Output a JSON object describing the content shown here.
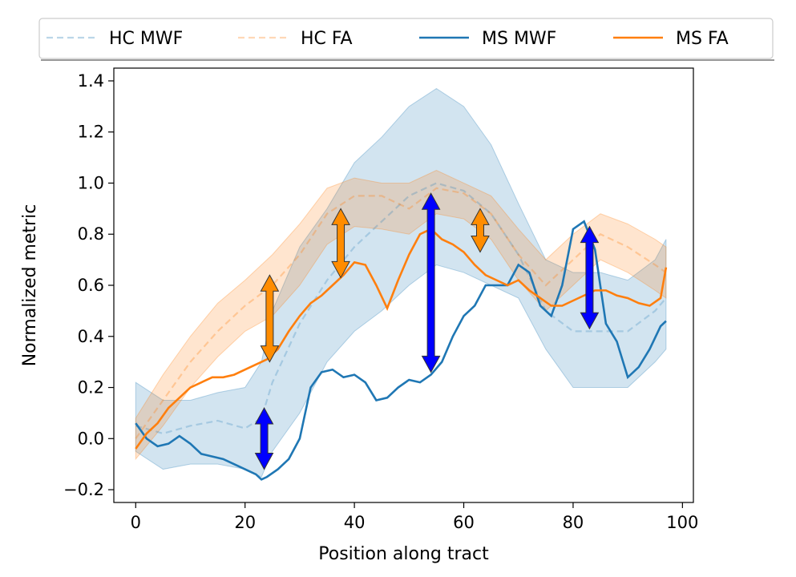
{
  "chart_data": {
    "type": "line",
    "title": "",
    "xlabel": "Position along tract",
    "ylabel": "Normalized metric",
    "xlim": [
      -4,
      102
    ],
    "ylim": [
      -0.25,
      1.45
    ],
    "xticks": [
      0,
      20,
      40,
      60,
      80,
      100
    ],
    "xtick_labels": [
      "0",
      "20",
      "40",
      "60",
      "80",
      "100"
    ],
    "yticks": [
      -0.2,
      0.0,
      0.2,
      0.4,
      0.6,
      0.8,
      1.0,
      1.2,
      1.4
    ],
    "ytick_labels": [
      "−0.2",
      "0.0",
      "0.2",
      "0.4",
      "0.6",
      "0.8",
      "1.0",
      "1.2",
      "1.4"
    ],
    "grid": false,
    "legend_position": "top, outside plot, single row",
    "legend": [
      {
        "label": "HC MWF",
        "color": "#1f77b4",
        "style": "dashed-faint"
      },
      {
        "label": "HC FA",
        "color": "#ff7f0e",
        "style": "dashed-faint"
      },
      {
        "label": "MS MWF",
        "color": "#1f77b4",
        "style": "solid"
      },
      {
        "label": "MS FA",
        "color": "#ff7f0e",
        "style": "solid"
      }
    ],
    "series": [
      {
        "name": "HC MWF",
        "color": "#1f77b4",
        "style": "dashed",
        "opacity": 0.25,
        "x": [
          0,
          5,
          10,
          15,
          20,
          23,
          25,
          30,
          35,
          40,
          45,
          50,
          55,
          60,
          65,
          70,
          75,
          80,
          85,
          90,
          95,
          97
        ],
        "y": [
          0.05,
          0.02,
          0.05,
          0.07,
          0.04,
          0.08,
          0.22,
          0.45,
          0.62,
          0.75,
          0.85,
          0.95,
          1.0,
          0.97,
          0.88,
          0.72,
          0.5,
          0.42,
          0.42,
          0.42,
          0.5,
          0.55
        ]
      },
      {
        "name": "HC MWF band",
        "color": "#1f77b4",
        "style": "band",
        "opacity": 0.2,
        "x": [
          0,
          5,
          10,
          15,
          20,
          23,
          25,
          30,
          35,
          40,
          45,
          50,
          55,
          60,
          65,
          70,
          75,
          80,
          85,
          90,
          95,
          97
        ],
        "lower": [
          -0.05,
          -0.12,
          -0.1,
          -0.1,
          -0.12,
          -0.15,
          -0.05,
          0.1,
          0.3,
          0.42,
          0.5,
          0.6,
          0.68,
          0.65,
          0.6,
          0.55,
          0.35,
          0.2,
          0.2,
          0.2,
          0.3,
          0.35
        ],
        "upper": [
          0.22,
          0.15,
          0.15,
          0.18,
          0.2,
          0.3,
          0.5,
          0.75,
          0.9,
          1.08,
          1.18,
          1.3,
          1.37,
          1.3,
          1.15,
          0.92,
          0.7,
          0.65,
          0.65,
          0.62,
          0.7,
          0.78
        ]
      },
      {
        "name": "HC FA",
        "color": "#ff7f0e",
        "style": "dashed",
        "opacity": 0.3,
        "x": [
          0,
          5,
          10,
          15,
          20,
          25,
          30,
          35,
          40,
          45,
          50,
          55,
          60,
          65,
          70,
          75,
          80,
          85,
          90,
          95,
          97
        ],
        "y": [
          0.0,
          0.15,
          0.3,
          0.42,
          0.52,
          0.6,
          0.72,
          0.88,
          0.95,
          0.95,
          0.9,
          0.98,
          0.96,
          0.88,
          0.72,
          0.6,
          0.7,
          0.8,
          0.75,
          0.68,
          0.65
        ]
      },
      {
        "name": "HC FA band",
        "color": "#ff7f0e",
        "style": "band",
        "opacity": 0.2,
        "x": [
          0,
          5,
          10,
          15,
          20,
          25,
          30,
          35,
          40,
          45,
          50,
          55,
          60,
          65,
          70,
          75,
          80,
          85,
          90,
          95,
          97
        ],
        "lower": [
          -0.08,
          0.05,
          0.2,
          0.32,
          0.42,
          0.48,
          0.6,
          0.76,
          0.83,
          0.82,
          0.8,
          0.88,
          0.86,
          0.78,
          0.62,
          0.5,
          0.6,
          0.7,
          0.65,
          0.58,
          0.55
        ],
        "upper": [
          0.08,
          0.25,
          0.4,
          0.53,
          0.62,
          0.72,
          0.84,
          0.98,
          1.02,
          1.0,
          1.0,
          1.05,
          1.0,
          0.95,
          0.82,
          0.7,
          0.8,
          0.88,
          0.84,
          0.78,
          0.75
        ]
      },
      {
        "name": "MS MWF",
        "color": "#1f77b4",
        "style": "solid",
        "opacity": 1,
        "x": [
          0,
          2,
          4,
          6,
          8,
          10,
          12,
          14,
          16,
          18,
          20,
          22,
          23,
          24,
          26,
          28,
          30,
          32,
          34,
          36,
          38,
          40,
          42,
          44,
          46,
          48,
          50,
          52,
          54,
          56,
          58,
          60,
          62,
          64,
          66,
          68,
          70,
          72,
          74,
          76,
          78,
          80,
          82,
          84,
          86,
          88,
          90,
          92,
          94,
          96,
          97
        ],
        "y": [
          0.06,
          0.0,
          -0.03,
          -0.02,
          0.01,
          -0.02,
          -0.06,
          -0.07,
          -0.08,
          -0.1,
          -0.12,
          -0.14,
          -0.16,
          -0.15,
          -0.12,
          -0.08,
          0.0,
          0.2,
          0.26,
          0.27,
          0.24,
          0.25,
          0.22,
          0.15,
          0.16,
          0.2,
          0.23,
          0.22,
          0.25,
          0.3,
          0.4,
          0.48,
          0.52,
          0.6,
          0.6,
          0.6,
          0.68,
          0.65,
          0.52,
          0.48,
          0.6,
          0.82,
          0.85,
          0.74,
          0.45,
          0.38,
          0.24,
          0.28,
          0.35,
          0.44,
          0.46
        ]
      },
      {
        "name": "MS FA",
        "color": "#ff7f0e",
        "style": "solid",
        "opacity": 1,
        "x": [
          0,
          2,
          4,
          6,
          8,
          10,
          12,
          14,
          16,
          18,
          20,
          22,
          24,
          26,
          28,
          30,
          32,
          34,
          36,
          38,
          40,
          42,
          44,
          46,
          48,
          50,
          52,
          54,
          56,
          58,
          60,
          62,
          64,
          66,
          68,
          70,
          72,
          74,
          76,
          78,
          80,
          82,
          84,
          86,
          88,
          90,
          92,
          94,
          96,
          97
        ],
        "y": [
          -0.04,
          0.02,
          0.06,
          0.12,
          0.16,
          0.2,
          0.22,
          0.24,
          0.24,
          0.25,
          0.27,
          0.29,
          0.31,
          0.35,
          0.42,
          0.48,
          0.53,
          0.56,
          0.6,
          0.64,
          0.69,
          0.68,
          0.6,
          0.51,
          0.62,
          0.72,
          0.8,
          0.82,
          0.78,
          0.76,
          0.73,
          0.68,
          0.64,
          0.62,
          0.6,
          0.62,
          0.58,
          0.55,
          0.52,
          0.52,
          0.54,
          0.56,
          0.58,
          0.58,
          0.56,
          0.55,
          0.53,
          0.52,
          0.55,
          0.67
        ]
      }
    ],
    "annotations": [
      {
        "type": "double-arrow",
        "color": "#0000ff",
        "x": 23.5,
        "y_from": -0.12,
        "y_to": 0.12
      },
      {
        "type": "double-arrow",
        "color": "#ff8c00",
        "x": 24.5,
        "y_from": 0.3,
        "y_to": 0.64
      },
      {
        "type": "double-arrow",
        "color": "#ff8c00",
        "x": 37.5,
        "y_from": 0.63,
        "y_to": 0.9
      },
      {
        "type": "double-arrow",
        "color": "#0000ff",
        "x": 54,
        "y_from": 0.26,
        "y_to": 0.96
      },
      {
        "type": "double-arrow",
        "color": "#ff8c00",
        "x": 63,
        "y_from": 0.73,
        "y_to": 0.9
      },
      {
        "type": "double-arrow",
        "color": "#0000ff",
        "x": 83,
        "y_from": 0.43,
        "y_to": 0.83
      }
    ]
  }
}
